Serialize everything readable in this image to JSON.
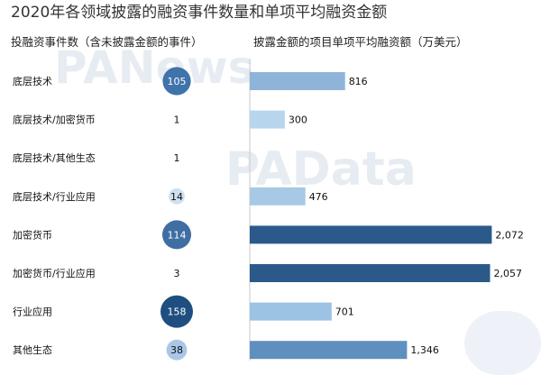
{
  "chart_data": {
    "type": "bar",
    "title": "2020年各领域披露的融资事件数量和单项平均融资金额",
    "left_header": "投融资事件数（含未披露金额的事件）",
    "right_header": "披露金额的项目单项平均融资额（万美元）",
    "categories": [
      "底层技术",
      "底层技术/加密货币",
      "底层技术/其他生态",
      "底层技术/行业应用",
      "加密货币",
      "加密货币/行业应用",
      "行业应用",
      "其他生态"
    ],
    "counts": [
      105,
      1,
      1,
      14,
      114,
      3,
      158,
      38
    ],
    "values": [
      816,
      300,
      1,
      476,
      2072,
      2057,
      701,
      1346
    ],
    "value_labels": [
      "816",
      "300",
      "",
      "476",
      "2,072",
      "2,057",
      "701",
      "1,346"
    ],
    "bar_colors": [
      "#8fb4d9",
      "#b7d6ee",
      "#b7d6ee",
      "#a7c9e6",
      "#2b5a8a",
      "#2b5a8a",
      "#9cc2e4",
      "#5f8fbf"
    ],
    "bubble_colors": [
      "#3f73aa",
      "#e6eef7",
      "#e6eef7",
      "#cfe0f0",
      "#3f6ea3",
      "#e6eef7",
      "#1f4f80",
      "#a9c7e6"
    ],
    "count_text_colors": [
      "#ffffff",
      "#111111",
      "#111111",
      "#111111",
      "#ffffff",
      "#111111",
      "#ffffff",
      "#111111"
    ],
    "xlim": [
      0,
      2200
    ]
  },
  "watermark": {
    "line1": "PANews",
    "line2": "PAData"
  }
}
